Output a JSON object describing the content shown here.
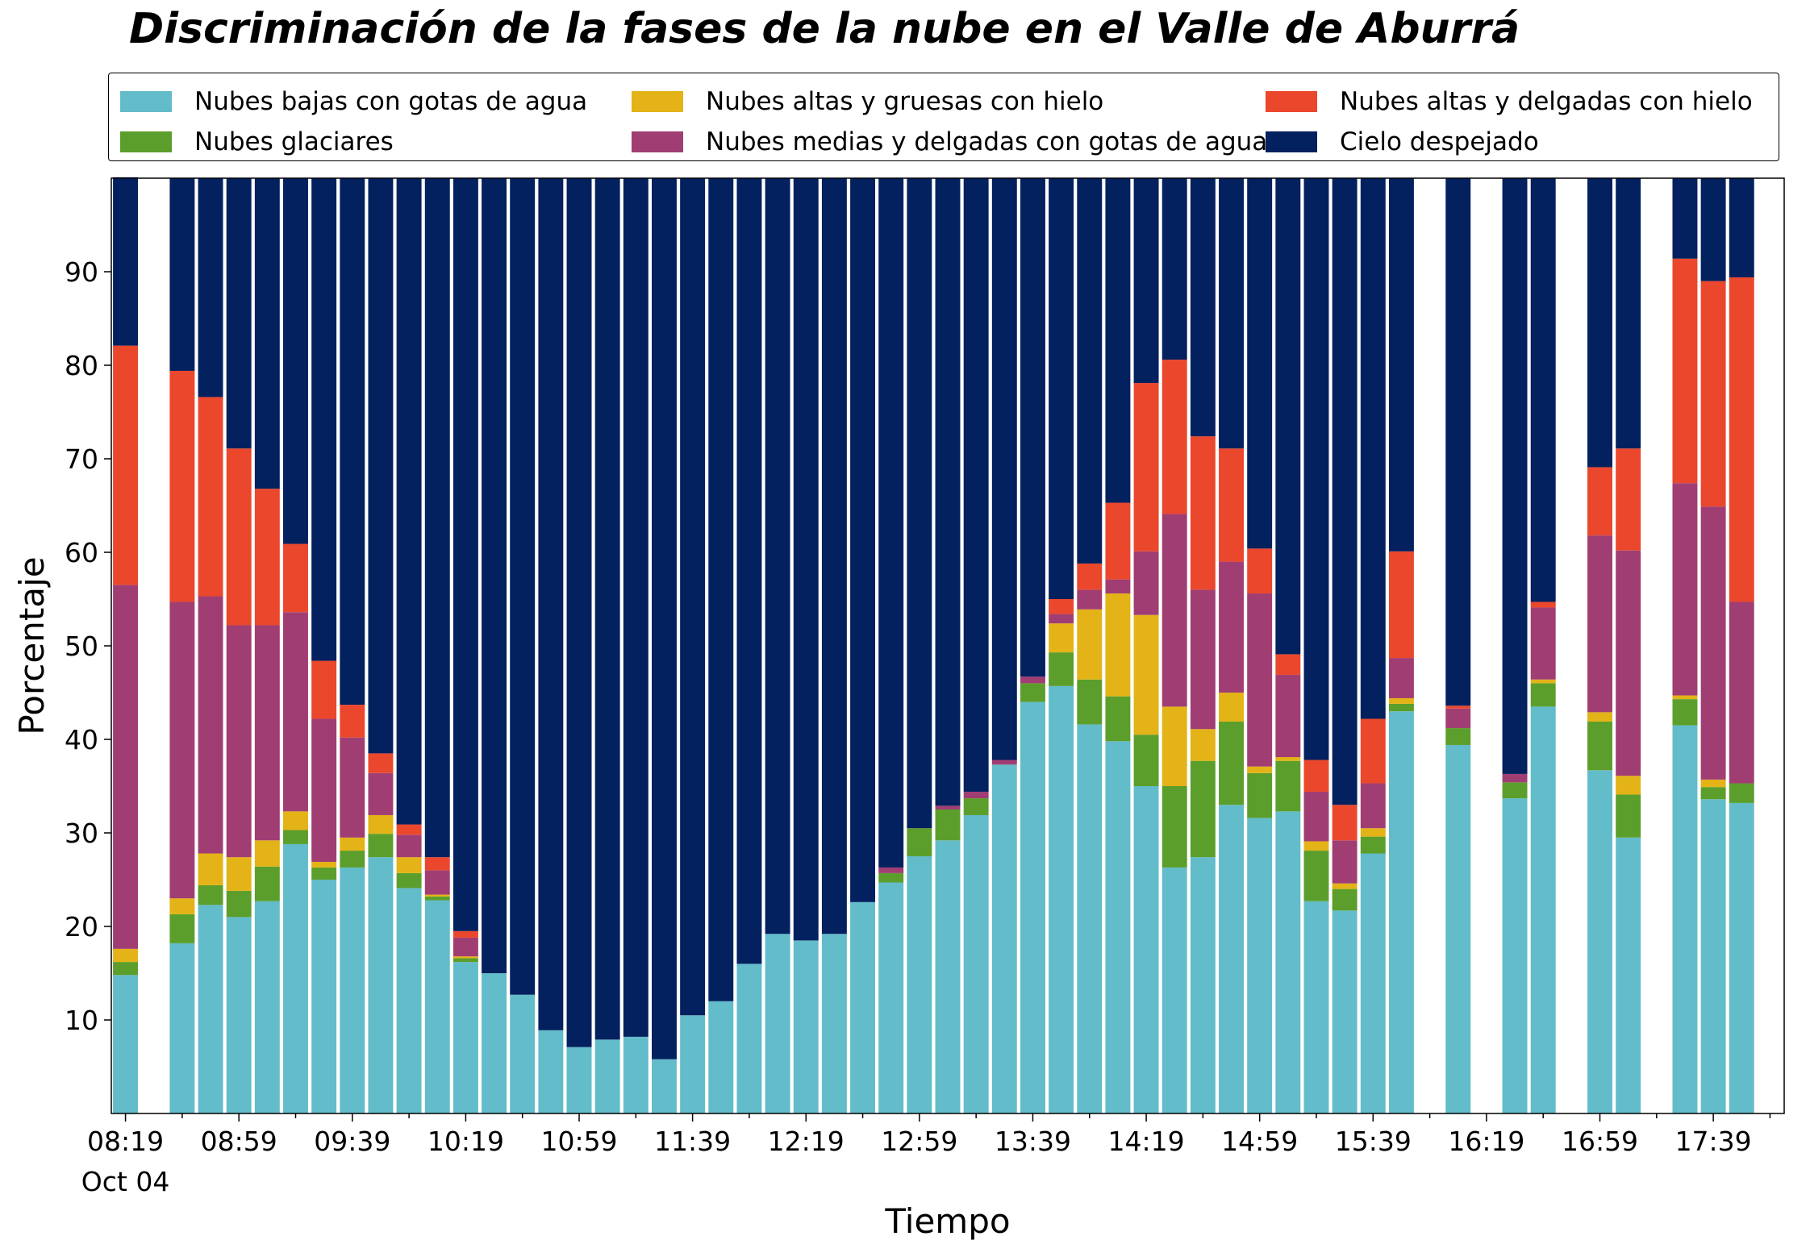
{
  "chart_data": {
    "type": "bar",
    "stacked": true,
    "title": "Discriminación de la fases de la nube en el Valle de Aburrá",
    "xlabel": "Tiempo",
    "ylabel": "Porcentaje",
    "ylim": [
      0,
      100
    ],
    "yticks": [
      10,
      20,
      30,
      40,
      50,
      60,
      70,
      80,
      90
    ],
    "xtick_labels": [
      "08:19",
      "08:59",
      "09:39",
      "10:19",
      "10:59",
      "11:39",
      "12:19",
      "12:59",
      "13:39",
      "14:19",
      "14:59",
      "15:39",
      "16:19",
      "16:59",
      "17:39"
    ],
    "xtick_date_label": "Oct 04",
    "legend_position": "top",
    "grid": false,
    "colors": {
      "low_water": "#63bcc9",
      "glacial": "#5c9e2b",
      "high_thick_ice": "#e3b317",
      "mid_thin_water": "#a03e73",
      "high_thin_ice": "#eb472c",
      "clear_sky": "#03205f"
    },
    "series_order": [
      "low_water",
      "glacial",
      "high_thick_ice",
      "mid_thin_water",
      "high_thin_ice",
      "clear_sky"
    ],
    "legend": [
      {
        "key": "low_water",
        "label": "Nubes bajas con gotas de agua"
      },
      {
        "key": "glacial",
        "label": "Nubes glaciares"
      },
      {
        "key": "high_thick_ice",
        "label": "Nubes altas y gruesas con hielo"
      },
      {
        "key": "mid_thin_water",
        "label": "Nubes medias y delgadas con gotas de agua"
      },
      {
        "key": "high_thin_ice",
        "label": "Nubes altas y delgadas con hielo"
      },
      {
        "key": "clear_sky",
        "label": "Cielo despejado"
      }
    ],
    "x_slots": 59,
    "bars": [
      {
        "slot": 0,
        "values": [
          14.8,
          1.4,
          1.4,
          38.9,
          25.6,
          18.0
        ]
      },
      {
        "slot": 2,
        "values": [
          18.2,
          3.1,
          1.7,
          31.7,
          24.7,
          20.6
        ]
      },
      {
        "slot": 3,
        "values": [
          22.3,
          2.1,
          3.4,
          27.5,
          21.3,
          23.4
        ]
      },
      {
        "slot": 4,
        "values": [
          21.0,
          2.8,
          3.6,
          24.8,
          18.9,
          28.9
        ]
      },
      {
        "slot": 5,
        "values": [
          22.7,
          3.7,
          2.8,
          23.0,
          14.6,
          33.2
        ]
      },
      {
        "slot": 6,
        "values": [
          28.8,
          1.5,
          2.0,
          21.3,
          7.3,
          39.1
        ]
      },
      {
        "slot": 7,
        "values": [
          25.0,
          1.3,
          0.6,
          15.3,
          6.2,
          51.6
        ]
      },
      {
        "slot": 8,
        "values": [
          26.3,
          1.8,
          1.4,
          10.7,
          3.5,
          56.3
        ]
      },
      {
        "slot": 9,
        "values": [
          27.4,
          2.5,
          2.0,
          4.5,
          2.1,
          61.5
        ]
      },
      {
        "slot": 10,
        "values": [
          24.1,
          1.6,
          1.7,
          2.4,
          1.1,
          69.1
        ]
      },
      {
        "slot": 11,
        "values": [
          22.8,
          0.4,
          0.2,
          2.6,
          1.4,
          72.6
        ]
      },
      {
        "slot": 12,
        "values": [
          16.2,
          0.4,
          0.2,
          2.0,
          0.7,
          80.5
        ]
      },
      {
        "slot": 13,
        "values": [
          15.0,
          0,
          0,
          0,
          0,
          85.0
        ]
      },
      {
        "slot": 14,
        "values": [
          12.7,
          0,
          0,
          0,
          0,
          87.3
        ]
      },
      {
        "slot": 15,
        "values": [
          8.9,
          0,
          0,
          0,
          0,
          91.1
        ]
      },
      {
        "slot": 16,
        "values": [
          7.1,
          0,
          0,
          0,
          0,
          92.9
        ]
      },
      {
        "slot": 17,
        "values": [
          7.9,
          0,
          0,
          0,
          0,
          92.1
        ]
      },
      {
        "slot": 18,
        "values": [
          8.2,
          0,
          0,
          0,
          0,
          91.8
        ]
      },
      {
        "slot": 19,
        "values": [
          5.8,
          0,
          0,
          0,
          0,
          94.2
        ]
      },
      {
        "slot": 20,
        "values": [
          10.5,
          0,
          0,
          0,
          0,
          89.5
        ]
      },
      {
        "slot": 21,
        "values": [
          12.0,
          0,
          0,
          0,
          0,
          88.0
        ]
      },
      {
        "slot": 22,
        "values": [
          16.0,
          0,
          0,
          0,
          0,
          84.0
        ]
      },
      {
        "slot": 23,
        "values": [
          19.2,
          0,
          0,
          0,
          0,
          80.8
        ]
      },
      {
        "slot": 24,
        "values": [
          18.5,
          0,
          0,
          0,
          0,
          81.5
        ]
      },
      {
        "slot": 25,
        "values": [
          19.2,
          0,
          0,
          0,
          0,
          80.8
        ]
      },
      {
        "slot": 26,
        "values": [
          22.6,
          0,
          0,
          0,
          0,
          77.4
        ]
      },
      {
        "slot": 27,
        "values": [
          24.7,
          1.0,
          0,
          0.6,
          0,
          73.7
        ]
      },
      {
        "slot": 28,
        "values": [
          27.5,
          3.0,
          0,
          0,
          0,
          69.5
        ]
      },
      {
        "slot": 29,
        "values": [
          29.2,
          3.3,
          0,
          0.4,
          0,
          67.1
        ]
      },
      {
        "slot": 30,
        "values": [
          31.9,
          1.8,
          0,
          0.7,
          0,
          65.6
        ]
      },
      {
        "slot": 31,
        "values": [
          37.3,
          0,
          0,
          0.5,
          0,
          62.2
        ]
      },
      {
        "slot": 32,
        "values": [
          44.0,
          2.0,
          0,
          0.7,
          0,
          53.3
        ]
      },
      {
        "slot": 33,
        "values": [
          45.7,
          3.6,
          3.1,
          1.0,
          1.6,
          45.0
        ]
      },
      {
        "slot": 34,
        "values": [
          41.6,
          4.8,
          7.5,
          2.1,
          2.8,
          41.2
        ]
      },
      {
        "slot": 35,
        "values": [
          39.8,
          4.8,
          11.0,
          1.5,
          8.2,
          34.7
        ]
      },
      {
        "slot": 36,
        "values": [
          35.0,
          5.5,
          12.8,
          6.8,
          18.0,
          21.9
        ]
      },
      {
        "slot": 37,
        "values": [
          26.3,
          8.7,
          8.5,
          20.6,
          16.5,
          19.4
        ]
      },
      {
        "slot": 38,
        "values": [
          27.4,
          10.3,
          3.4,
          14.9,
          16.4,
          27.6
        ]
      },
      {
        "slot": 39,
        "values": [
          33.0,
          8.9,
          3.1,
          14.0,
          12.1,
          28.9
        ]
      },
      {
        "slot": 40,
        "values": [
          31.6,
          4.8,
          0.7,
          18.5,
          4.8,
          39.6
        ]
      },
      {
        "slot": 41,
        "values": [
          32.3,
          5.4,
          0.4,
          8.8,
          2.2,
          50.9
        ]
      },
      {
        "slot": 42,
        "values": [
          22.7,
          5.4,
          1.0,
          5.3,
          3.4,
          62.2
        ]
      },
      {
        "slot": 43,
        "values": [
          21.7,
          2.3,
          0.6,
          4.6,
          3.8,
          67.0
        ]
      },
      {
        "slot": 44,
        "values": [
          27.8,
          1.8,
          0.9,
          4.8,
          6.9,
          57.8
        ]
      },
      {
        "slot": 45,
        "values": [
          43.0,
          0.8,
          0.6,
          4.3,
          11.4,
          39.9
        ]
      },
      {
        "slot": 47,
        "values": [
          39.4,
          1.8,
          0,
          2.1,
          0.3,
          56.4
        ]
      },
      {
        "slot": 49,
        "values": [
          33.7,
          1.7,
          0,
          0.9,
          0,
          63.7
        ]
      },
      {
        "slot": 50,
        "values": [
          43.5,
          2.5,
          0.4,
          7.7,
          0.6,
          45.3
        ]
      },
      {
        "slot": 52,
        "values": [
          36.7,
          5.2,
          1.0,
          18.9,
          7.3,
          30.9
        ]
      },
      {
        "slot": 53,
        "values": [
          29.5,
          4.6,
          2.0,
          24.1,
          10.9,
          28.9
        ]
      },
      {
        "slot": 55,
        "values": [
          41.5,
          2.8,
          0.4,
          22.7,
          24.0,
          8.6
        ]
      },
      {
        "slot": 56,
        "values": [
          33.6,
          1.3,
          0.8,
          29.2,
          24.1,
          11.0
        ]
      },
      {
        "slot": 57,
        "values": [
          33.2,
          2.1,
          0,
          19.4,
          34.7,
          10.6
        ]
      }
    ]
  }
}
